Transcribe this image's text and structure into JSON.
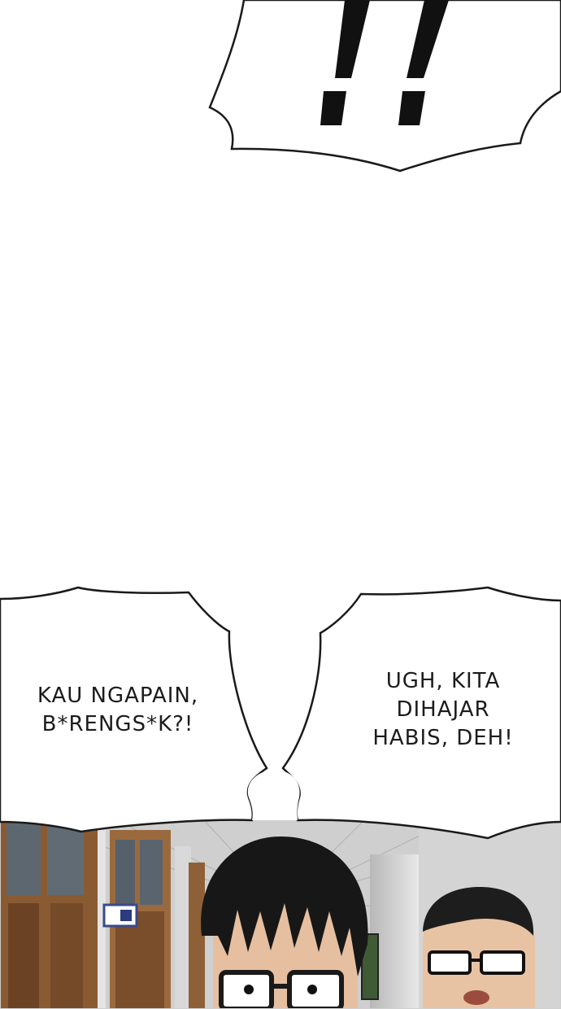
{
  "panel_top": {
    "shout_bubble": {
      "text": "!!"
    }
  },
  "panel_bottom": {
    "bubble_left": {
      "lines": [
        "KAU NGAPAIN,",
        "B*RENGS*K?!"
      ]
    },
    "bubble_right": {
      "lines": [
        "UGH, KITA",
        "DIHAJAR",
        "HABIS, DEH!"
      ]
    },
    "scene": "school-hallway",
    "characters": [
      "boy-with-glasses",
      "man-with-glasses"
    ]
  }
}
